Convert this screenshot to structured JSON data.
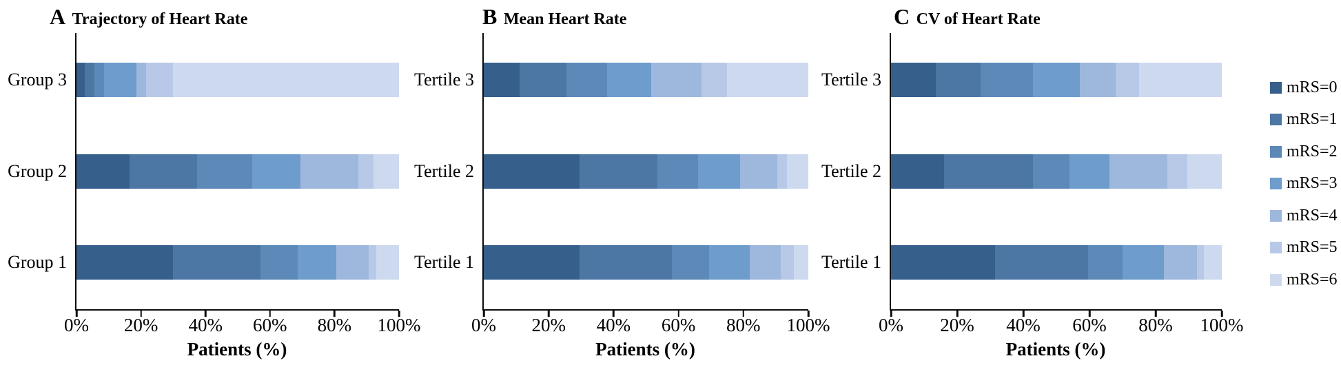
{
  "figure": {
    "xlabel": "Patients (%)",
    "x_ticks": [
      "0%",
      "20%",
      "40%",
      "60%",
      "80%",
      "100%"
    ]
  },
  "legend": {
    "items": [
      "mRS=0",
      "mRS=1",
      "mRS=2",
      "mRS=3",
      "mRS=4",
      "mRS=5",
      "mRS=6"
    ],
    "colors": [
      "#365f8c",
      "#4c77a4",
      "#5c89b8",
      "#6d9ccd",
      "#9eb7dd",
      "#b8c9e8",
      "#cdd9ee"
    ]
  },
  "chart_data": [
    {
      "type": "bar",
      "orientation": "horizontal-stacked",
      "panel_letter": "A",
      "title": "Trajectory of Heart Rate",
      "xlabel": "Patients (%)",
      "xlim": [
        0,
        100
      ],
      "x_ticks": [
        "0%",
        "20%",
        "40%",
        "60%",
        "80%",
        "100%"
      ],
      "series_legend": [
        "mRS=0",
        "mRS=1",
        "mRS=2",
        "mRS=3",
        "mRS=4",
        "mRS=5",
        "mRS=6"
      ],
      "rows": [
        {
          "category": "Group 3",
          "values": [
            2.5,
            3,
            3,
            10,
            3,
            8.5,
            70
          ]
        },
        {
          "category": "Group 2",
          "values": [
            16.5,
            21,
            17,
            15,
            18,
            4.5,
            8
          ]
        },
        {
          "category": "Group 1",
          "values": [
            30,
            27,
            11.5,
            12,
            10,
            2.5,
            7
          ]
        }
      ]
    },
    {
      "type": "bar",
      "orientation": "horizontal-stacked",
      "panel_letter": "B",
      "title": "Mean Heart Rate",
      "xlabel": "Patients (%)",
      "xlim": [
        0,
        100
      ],
      "x_ticks": [
        "0%",
        "20%",
        "40%",
        "60%",
        "80%",
        "100%"
      ],
      "series_legend": [
        "mRS=0",
        "mRS=1",
        "mRS=2",
        "mRS=3",
        "mRS=4",
        "mRS=5",
        "mRS=6"
      ],
      "rows": [
        {
          "category": "Tertile 3",
          "values": [
            11,
            14.5,
            12.5,
            13.5,
            15.5,
            8,
            25
          ]
        },
        {
          "category": "Tertile 2",
          "values": [
            29.5,
            24,
            12.5,
            13,
            11.5,
            3,
            6.5
          ]
        },
        {
          "category": "Tertile 1",
          "values": [
            29.5,
            28.5,
            11.5,
            12.5,
            9.5,
            4,
            4.5
          ]
        }
      ]
    },
    {
      "type": "bar",
      "orientation": "horizontal-stacked",
      "panel_letter": "C",
      "title": "CV of Heart Rate",
      "xlabel": "Patients (%)",
      "xlim": [
        0,
        100
      ],
      "x_ticks": [
        "0%",
        "20%",
        "40%",
        "60%",
        "80%",
        "100%"
      ],
      "series_legend": [
        "mRS=0",
        "mRS=1",
        "mRS=2",
        "mRS=3",
        "mRS=4",
        "mRS=5",
        "mRS=6"
      ],
      "rows": [
        {
          "category": "Tertile 3",
          "values": [
            13.5,
            13.5,
            16,
            14,
            11,
            7,
            25
          ]
        },
        {
          "category": "Tertile 2",
          "values": [
            16,
            27,
            11,
            12,
            17.5,
            6,
            10.5
          ]
        },
        {
          "category": "Tertile 1",
          "values": [
            31.5,
            28,
            10.5,
            12.5,
            10,
            2,
            5.5
          ]
        }
      ]
    }
  ]
}
